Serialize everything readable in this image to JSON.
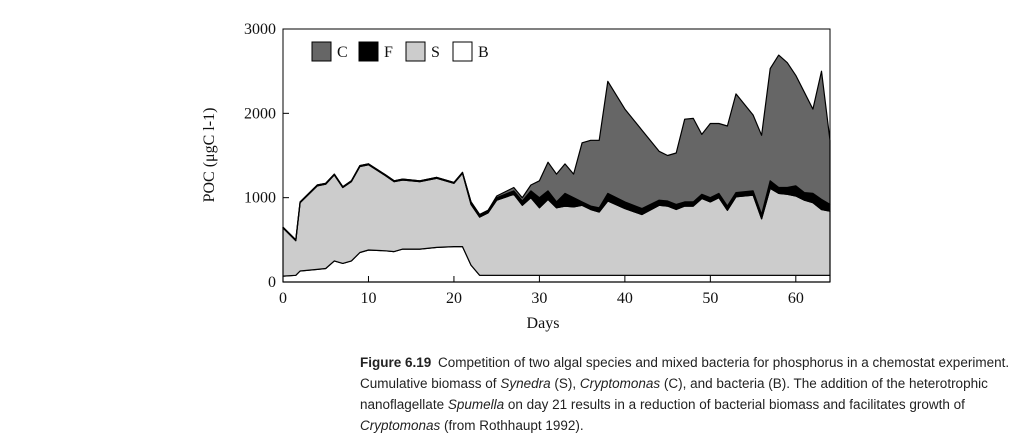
{
  "chart_data": {
    "type": "area",
    "stacked": true,
    "y_label": "POC (μgC l-1)",
    "x_label": "Days",
    "xlim": [
      0,
      64
    ],
    "xticks": [
      0,
      10,
      20,
      30,
      40,
      50,
      60
    ],
    "ylim": [
      0,
      3000
    ],
    "yticks": [
      0,
      1000,
      2000,
      3000
    ],
    "legend": "top-left",
    "x": [
      0,
      1.5,
      2,
      4,
      5,
      6,
      7,
      8,
      9,
      10,
      12,
      13,
      14,
      16,
      18,
      20,
      21,
      22,
      23,
      24,
      25,
      27,
      28,
      29,
      30,
      31,
      32,
      33,
      34,
      35,
      36,
      37,
      38,
      40,
      42,
      44,
      45,
      46,
      47,
      48,
      49,
      50,
      51,
      52,
      53,
      55,
      56,
      57,
      58,
      59,
      60,
      61,
      62,
      63,
      64
    ],
    "series": [
      {
        "name": "C",
        "color": "#666666",
        "values": [
          0,
          0,
          0,
          0,
          0,
          0,
          0,
          0,
          0,
          0,
          0,
          0,
          0,
          0,
          0,
          0,
          0,
          0,
          0,
          0,
          20,
          40,
          40,
          70,
          200,
          340,
          330,
          350,
          280,
          700,
          780,
          800,
          1330,
          1100,
          930,
          580,
          540,
          610,
          980,
          990,
          710,
          880,
          830,
          950,
          1170,
          900,
          940,
          1330,
          1570,
          1480,
          1310,
          1190,
          1000,
          1520,
          760
        ]
      },
      {
        "name": "F",
        "color": "#000000",
        "values": [
          10,
          10,
          10,
          10,
          10,
          10,
          10,
          10,
          10,
          10,
          10,
          10,
          10,
          10,
          10,
          10,
          10,
          30,
          30,
          30,
          30,
          40,
          50,
          80,
          120,
          100,
          70,
          150,
          110,
          40,
          40,
          50,
          90,
          80,
          70,
          60,
          60,
          60,
          50,
          50,
          50,
          50,
          50,
          50,
          50,
          50,
          50,
          90,
          70,
          80,
          120,
          90,
          110,
          120,
          80
        ]
      },
      {
        "name": "S",
        "color": "#cccccc",
        "values": [
          570,
          410,
          810,
          990,
          1000,
          1020,
          900,
          940,
          1020,
          1010,
          890,
          830,
          820,
          800,
          820,
          750,
          870,
          720,
          690,
          740,
          890,
          960,
          830,
          920,
          800,
          900,
          800,
          820,
          810,
          830,
          780,
          750,
          880,
          790,
          720,
          830,
          820,
          780,
          820,
          820,
          910,
          870,
          920,
          770,
          930,
          950,
          670,
          1030,
          970,
          960,
          940,
          890,
          860,
          780,
          760
        ]
      },
      {
        "name": "B",
        "color": "#ffffff",
        "values": [
          70,
          80,
          130,
          150,
          160,
          250,
          220,
          250,
          350,
          380,
          370,
          360,
          390,
          390,
          410,
          420,
          420,
          200,
          80,
          80,
          80,
          80,
          80,
          80,
          80,
          80,
          80,
          80,
          80,
          80,
          80,
          80,
          80,
          80,
          80,
          80,
          80,
          80,
          80,
          80,
          80,
          80,
          80,
          80,
          80,
          80,
          80,
          80,
          80,
          80,
          80,
          80,
          80,
          80,
          80
        ]
      }
    ]
  },
  "caption": {
    "label": "Figure 6.19",
    "parts": [
      {
        "text": "Competition of two algal species and mixed bacteria for phosphorus in a chemostat experiment. Cumulative biomass of ",
        "italic": false
      },
      {
        "text": "Synedra",
        "italic": true
      },
      {
        "text": " (S), ",
        "italic": false
      },
      {
        "text": "Cryptomonas",
        "italic": true
      },
      {
        "text": " (C), and bacteria (B). The addition of the heterotrophic nanoflagellate ",
        "italic": false
      },
      {
        "text": "Spumella",
        "italic": true
      },
      {
        "text": " on day 21 results in a reduction of bacterial biomass and facilitates growth of ",
        "italic": false
      },
      {
        "text": "Cryptomonas",
        "italic": true
      },
      {
        "text": " (from Rothhaupt 1992).",
        "italic": false
      }
    ]
  }
}
